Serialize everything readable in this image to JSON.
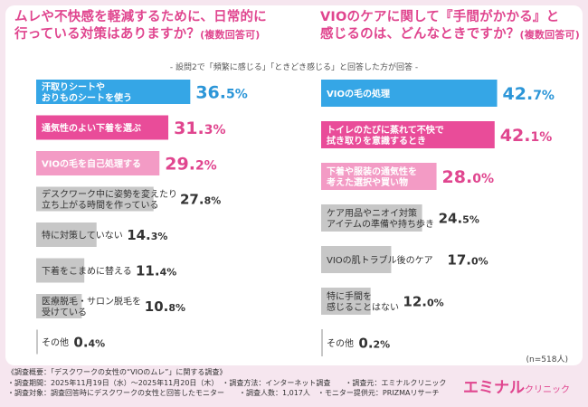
{
  "questions": [
    {
      "title_line1": "ムレや不快感を軽減するために、日常的に",
      "title_line2": "行っている対策はありますか？",
      "title_suffix": "(複数回答可)"
    },
    {
      "title_line1": "VIOのケアに関して『手間がかかる』と",
      "title_line2": "感じるのは、どんなときですか？",
      "title_suffix": "(複数回答可)"
    }
  ],
  "subnote": "- 設問2で「頻繁に感じる」「ときどき感じる」と回答した方が回答 -",
  "n_label": "(n=518人)",
  "colors": {
    "blue": "#35a6e6",
    "pink": "#e94c99",
    "lightpink": "#f39bc5",
    "gray": "#c7c7c7",
    "blue_text": "#2c96d8",
    "pink_text": "#e0468f"
  },
  "chart_data": [
    {
      "type": "bar",
      "categories": [
        [
          "汗取りシートや",
          "おりものシートを使う"
        ],
        [
          "通気性のよい下着を選ぶ"
        ],
        [
          "VIOの毛を自己処理する"
        ],
        [
          "デスクワーク中に姿勢を変えたり",
          "立ち上がる時間を作っている"
        ],
        [
          "特に対策していない"
        ],
        [
          "下着をこまめに替える"
        ],
        [
          "医療脱毛・サロン脱毛を",
          "受けている"
        ],
        [
          "その他"
        ]
      ],
      "values": [
        36.5,
        31.3,
        29.2,
        27.8,
        14.3,
        11.4,
        10.8,
        0.4
      ],
      "labels": [
        "36.5%",
        "31.3%",
        "29.2%",
        "27.8%",
        "14.3%",
        "11.4%",
        "10.8%",
        "0.4%"
      ],
      "bar_colors": [
        "blue",
        "pink",
        "lightpink",
        "gray",
        "gray",
        "gray",
        "gray",
        "gray"
      ]
    },
    {
      "type": "bar",
      "categories": [
        [
          "VIOの毛の処理"
        ],
        [
          "トイレのたびに蒸れて不快で",
          "拭き取りを意識するとき"
        ],
        [
          "下着や服装の通気性を",
          "考えた選択や買い物"
        ],
        [
          "ケア用品やニオイ対策",
          "アイテムの準備や持ち歩き"
        ],
        [
          "VIOの肌トラブル後のケア"
        ],
        [
          "特に手間を",
          "感じることはない"
        ],
        [
          "その他"
        ]
      ],
      "values": [
        42.7,
        42.1,
        28.0,
        24.5,
        17.0,
        12.0,
        0.2
      ],
      "labels": [
        "42.7%",
        "42.1%",
        "28.0%",
        "24.5%",
        "17.0%",
        "12.0%",
        "0.2%"
      ],
      "bar_colors": [
        "blue",
        "pink",
        "lightpink",
        "gray",
        "gray",
        "gray",
        "gray"
      ]
    }
  ],
  "footer_lines": [
    "《調査概要：「デスクワークの女性の“VIOのムレ”」に関する調査》",
    "・調査期間：2025年11月19日（水）～2025年11月20日（木）　・調査方法：インターネット調査　　・調査元：エミナルクリニック",
    "・調査対象：調査回答時にデスクワークの女性と回答したモニター　　・調査人数：1,017人　・モニター提供元：PRIZMAリサーチ"
  ],
  "brand": {
    "main": "エミナル",
    "sub": "クリニック"
  }
}
